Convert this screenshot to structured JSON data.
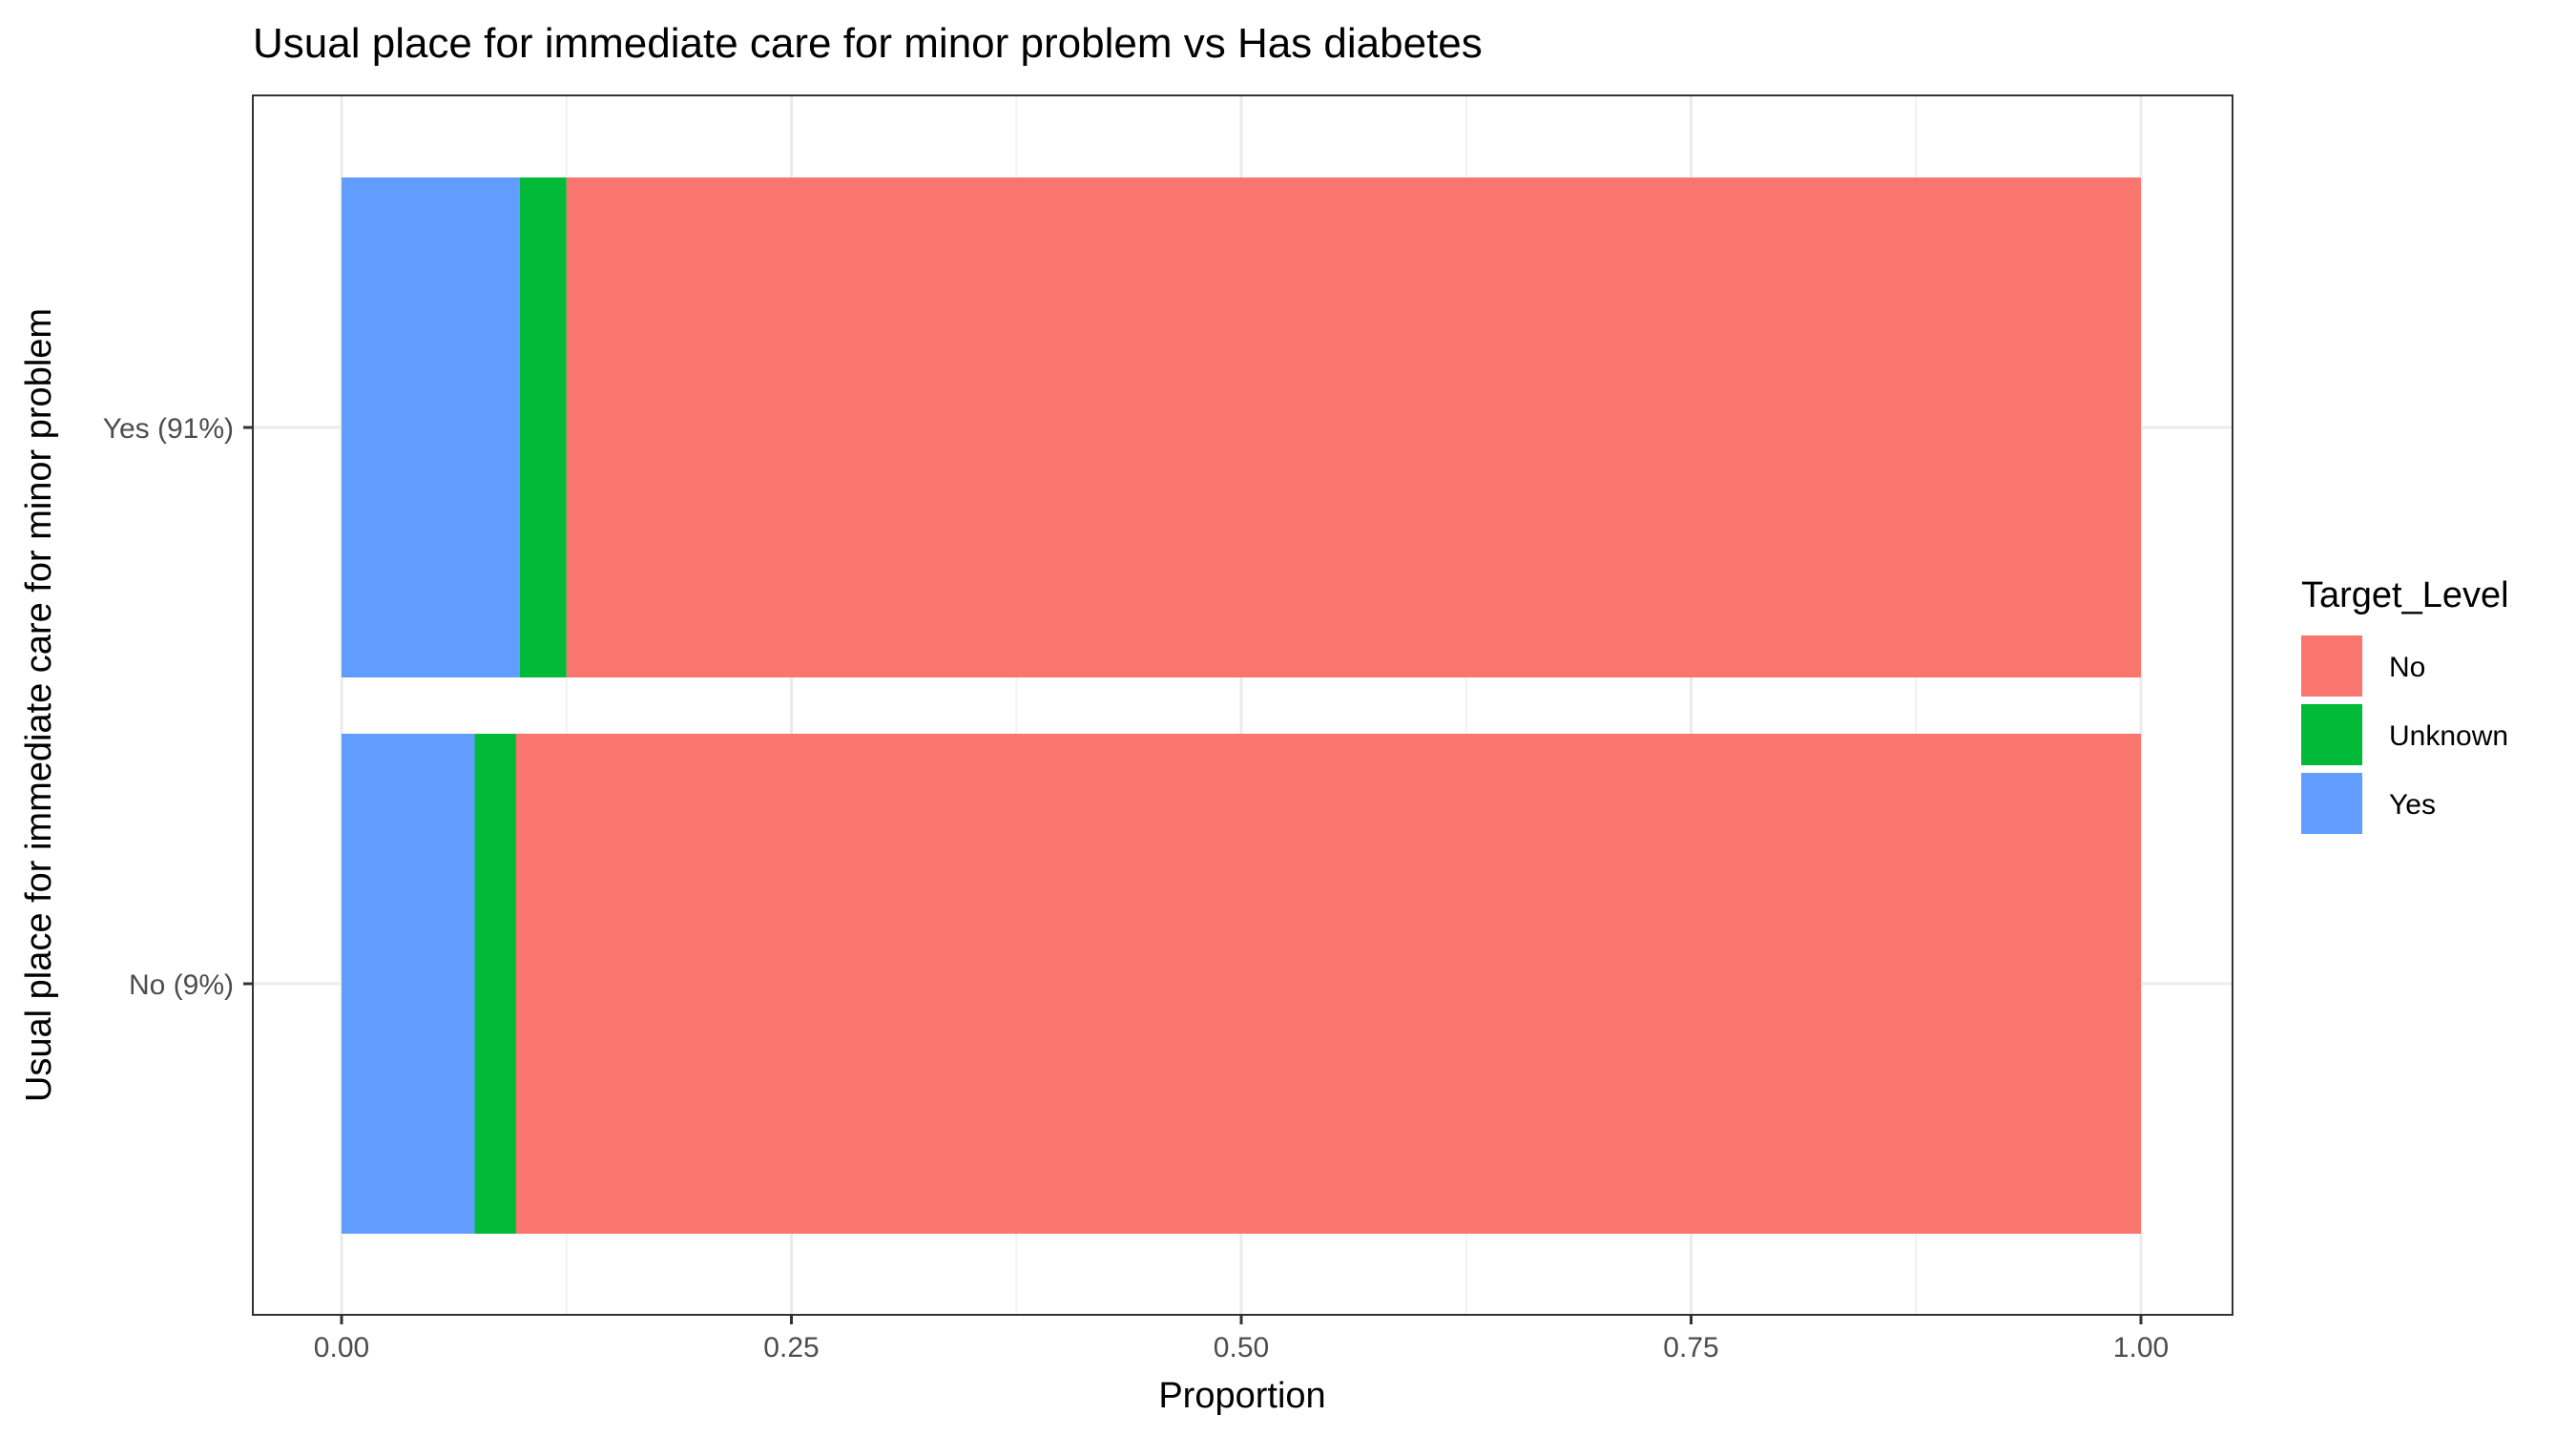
{
  "chart_data": {
    "type": "bar",
    "orientation": "horizontal",
    "stacked": true,
    "title": "Usual place for immediate care for minor problem vs Has diabetes",
    "xlabel": "Proportion",
    "ylabel": "Usual place for immediate care for minor problem",
    "categories": [
      "No (9%)",
      "Yes (91%)"
    ],
    "xlim": [
      0,
      1
    ],
    "x_ticks": [
      0,
      0.25,
      0.5,
      0.75,
      1
    ],
    "x_tick_labels": [
      "0.00",
      "0.25",
      "0.50",
      "0.75",
      "1.00"
    ],
    "grid": true,
    "legend": {
      "title": "Target_Level",
      "position": "right",
      "entries": [
        "No",
        "Unknown",
        "Yes"
      ]
    },
    "series": [
      {
        "name": "Yes",
        "color": "#619CFF",
        "values": [
          0.074,
          0.099
        ]
      },
      {
        "name": "Unknown",
        "color": "#00BA38",
        "values": [
          0.023,
          0.026
        ]
      },
      {
        "name": "No",
        "color": "#F8766D",
        "values": [
          0.903,
          0.875
        ]
      }
    ]
  }
}
